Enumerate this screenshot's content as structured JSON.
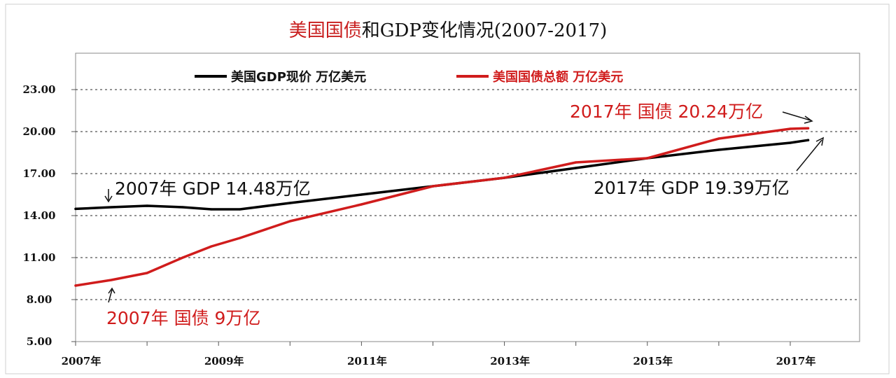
{
  "chart_data": {
    "type": "line",
    "title_red": "美国国债",
    "title_black": "和GDP变化情况(2007-2017)",
    "x": [
      2007.0,
      2007.5,
      2008.0,
      2008.5,
      2008.9,
      2009.3,
      2010.0,
      2011.0,
      2012.0,
      2013.0,
      2014.0,
      2015.0,
      2016.0,
      2017.0,
      2017.25
    ],
    "x_ticks": [
      2007,
      2009,
      2011,
      2013,
      2015,
      2017
    ],
    "x_tick_labels": [
      "2007年",
      "2009年",
      "2011年",
      "2013年",
      "2015年",
      "2017年"
    ],
    "ylim": [
      5,
      25.6
    ],
    "y_ticks": [
      5,
      8,
      11,
      14,
      17,
      20,
      23
    ],
    "y_tick_labels": [
      "5.00",
      "8.00",
      "11.00",
      "14.00",
      "17.00",
      "20.00",
      "23.00"
    ],
    "grid": true,
    "series": [
      {
        "name": "美国GDP现价 万亿美元",
        "color": "#000000",
        "values": [
          14.48,
          14.6,
          14.7,
          14.6,
          14.45,
          14.45,
          14.9,
          15.5,
          16.1,
          16.7,
          17.4,
          18.1,
          18.7,
          19.2,
          19.39
        ]
      },
      {
        "name": "美国国债总额 万亿美元",
        "color": "#d01c1c",
        "values": [
          9.0,
          9.4,
          9.9,
          11.0,
          11.8,
          12.4,
          13.6,
          14.8,
          16.1,
          16.7,
          17.8,
          18.1,
          19.5,
          20.2,
          20.24
        ]
      }
    ],
    "annotations": [
      {
        "text": "2007年 GDP 14.48万亿",
        "color": "#000000"
      },
      {
        "text": "2007年 国债 9万亿",
        "color": "#d01c1c"
      },
      {
        "text": "2017年 国债 20.24万亿",
        "color": "#d01c1c"
      },
      {
        "text": "2017年 GDP 19.39万亿",
        "color": "#000000"
      }
    ]
  }
}
